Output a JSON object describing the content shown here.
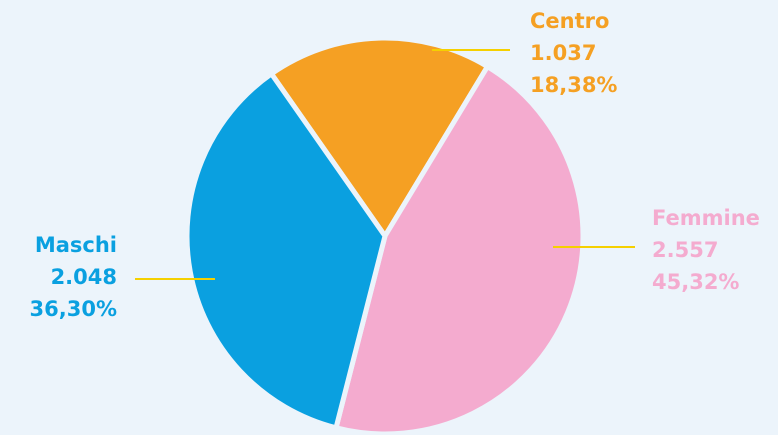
{
  "chart_data": {
    "type": "pie",
    "categories": [
      "Centro",
      "Femmine",
      "Maschi"
    ],
    "values": [
      1037,
      2557,
      2048
    ],
    "value_labels": [
      "1.037",
      "2.557",
      "2.048"
    ],
    "percents": [
      18.38,
      45.32,
      36.3
    ],
    "percent_labels": [
      "18,38%",
      "45,32%",
      "36,30%"
    ],
    "colors": [
      "#f5a023",
      "#f4abcf",
      "#0aa0e0"
    ]
  }
}
